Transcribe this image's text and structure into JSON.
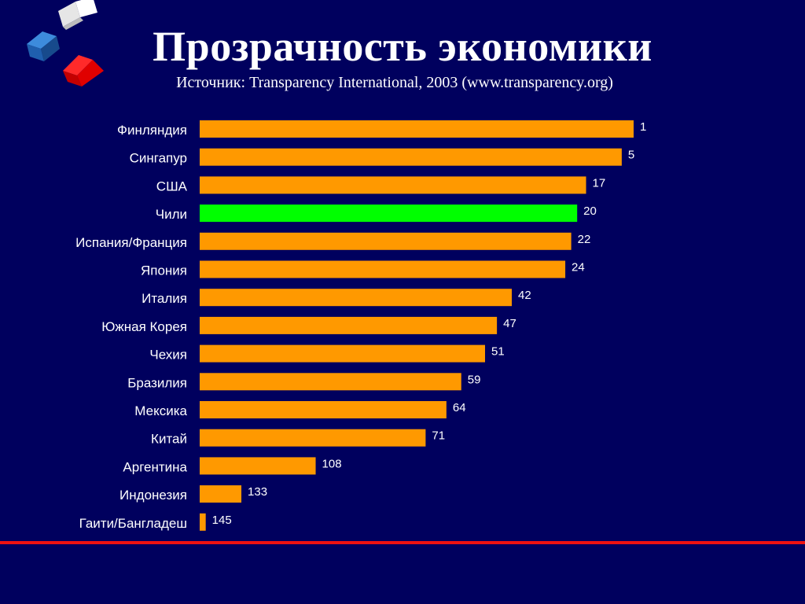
{
  "slide": {
    "title": "Прозрачность экономики",
    "source_prefix": "Источник",
    "source_rest": ": Transparency International, 2003 (www.transparency.org)"
  },
  "colors": {
    "background": "#00005e",
    "bar": "#ff9900",
    "highlight_bar": "#00ff00",
    "text": "#ffffff",
    "divider": "#ee1111"
  },
  "chart_data": {
    "type": "bar",
    "orientation": "horizontal",
    "categories": [
      "Финляндия",
      "Сингапур",
      "США",
      "Чили",
      "Испания/Франция",
      "Япония",
      "Италия",
      "Южная Корея",
      "Чехия",
      "Бразилия",
      "Мексика",
      "Китай",
      "Аргентина",
      "Индонезия",
      "Гаити/Бангладеш"
    ],
    "values": [
      1,
      5,
      17,
      20,
      22,
      24,
      42,
      47,
      51,
      59,
      64,
      71,
      108,
      133,
      145
    ],
    "highlight": "Чили",
    "value_scale": "rank (bar length shrinks as rank grows)",
    "xlim": [
      1,
      145
    ],
    "grid": false,
    "legend": false
  }
}
